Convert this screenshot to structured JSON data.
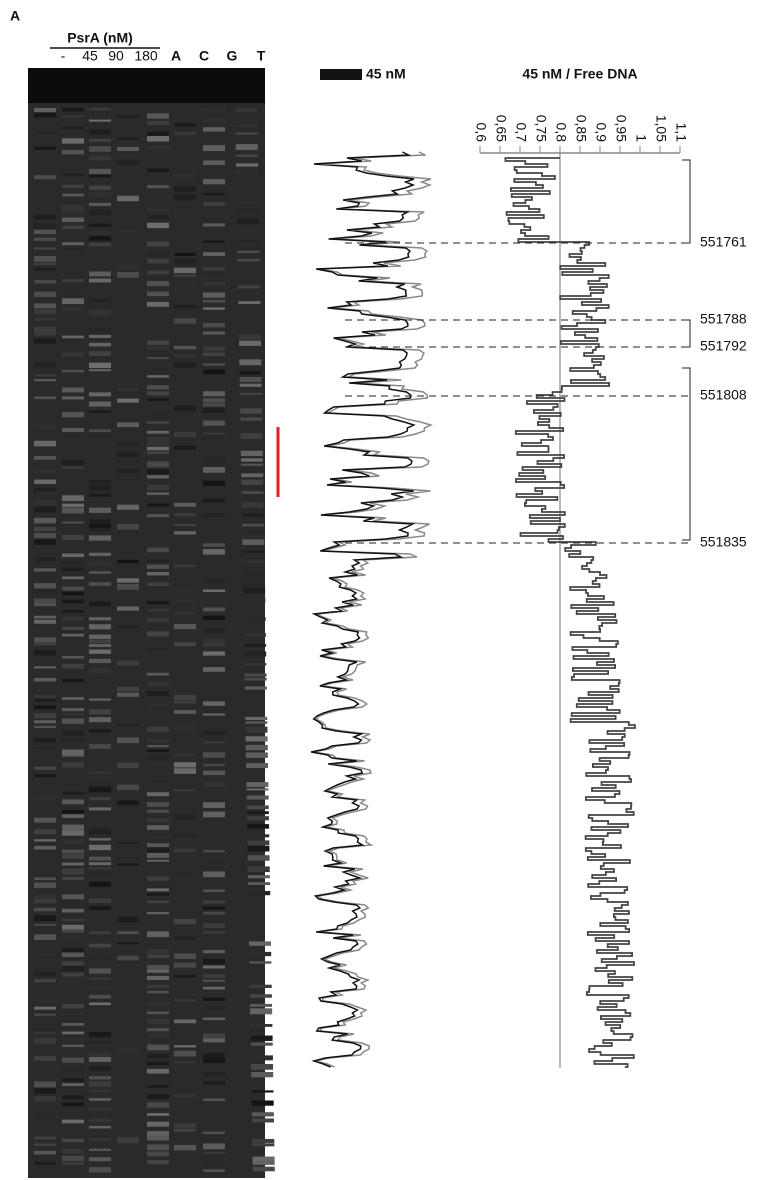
{
  "panel_label": "A",
  "gel": {
    "title": "PsrA (nM)",
    "lanes": [
      "-",
      "45",
      "90",
      "180",
      "A",
      "C",
      "G",
      "T"
    ]
  },
  "trace": {
    "legend": "45 nM"
  },
  "ratio": {
    "title": "45 nM / Free DNA",
    "xlim": [
      0.6,
      1.1
    ],
    "xticks": [
      {
        "value": 0.6,
        "label": "0,6"
      },
      {
        "value": 0.65,
        "label": "0,65"
      },
      {
        "value": 0.7,
        "label": "0,7"
      },
      {
        "value": 0.75,
        "label": "0,75"
      },
      {
        "value": 0.8,
        "label": "0,8"
      },
      {
        "value": 0.85,
        "label": "0,85"
      },
      {
        "value": 0.9,
        "label": "0,9"
      },
      {
        "value": 0.95,
        "label": "0,95"
      },
      {
        "value": 1,
        "label": "1"
      },
      {
        "value": 1.05,
        "label": "1,05"
      },
      {
        "value": 1.1,
        "label": "1,1"
      }
    ],
    "reference": 0.8
  },
  "positions": [
    "551761",
    "551788",
    "551792",
    "551808",
    "551835"
  ]
}
